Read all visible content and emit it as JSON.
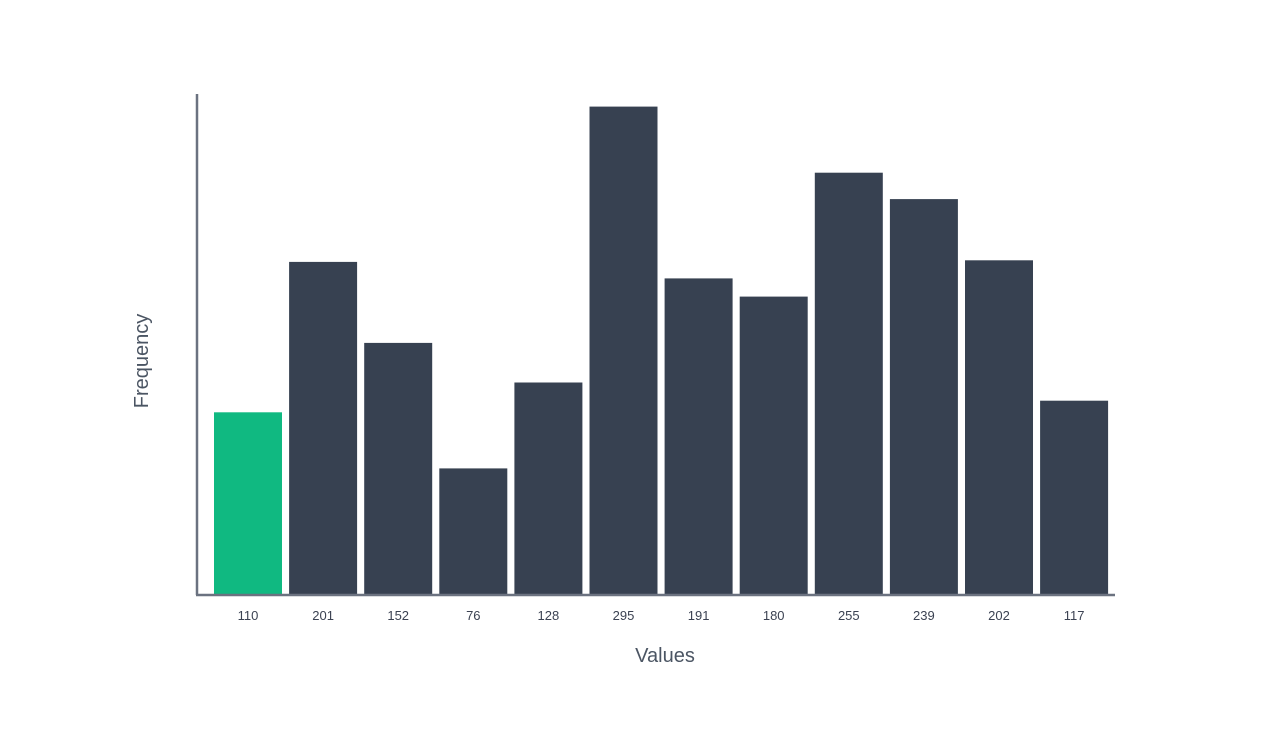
{
  "chart_data": {
    "type": "bar",
    "xlabel": "Values",
    "ylabel": "Frequency",
    "categories": [
      "110",
      "201",
      "152",
      "76",
      "128",
      "295",
      "191",
      "180",
      "255",
      "239",
      "202",
      "117"
    ],
    "values": [
      110,
      201,
      152,
      76,
      128,
      295,
      191,
      180,
      255,
      239,
      202,
      117
    ],
    "highlighted_index": 0,
    "ylim": [
      0,
      299
    ],
    "grid": false,
    "legend": "none",
    "colors": {
      "bar": "#374151",
      "highlight": "#10b981",
      "axis": "#6b7280"
    }
  }
}
